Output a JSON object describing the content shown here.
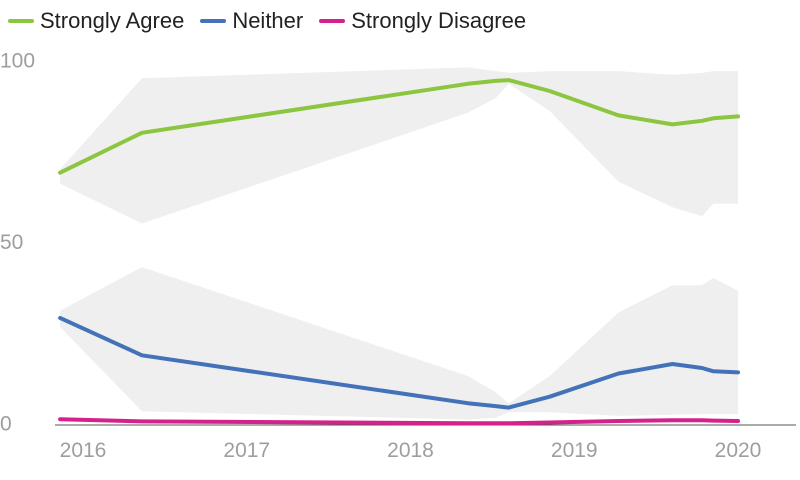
{
  "chart_data": {
    "type": "line",
    "title": "",
    "xlabel": "",
    "ylabel": "",
    "ylim": [
      0,
      100
    ],
    "y_ticks": [
      "0",
      "50",
      "100"
    ],
    "x_ticks": [
      {
        "label": "2016",
        "value": 2016
      },
      {
        "label": "2017",
        "value": 2017
      },
      {
        "label": "2018",
        "value": 2018
      },
      {
        "label": "2019",
        "value": 2019
      },
      {
        "label": "2020",
        "value": 2020
      }
    ],
    "xlim": [
      2015.8,
      2020.4
    ],
    "legend_position": "top-left",
    "grid": false,
    "series": [
      {
        "name": "Strongly Agree",
        "color": "#8cc540",
        "x": [
          2015.86,
          2016.36,
          2018.35,
          2018.52,
          2018.6,
          2018.85,
          2019.27,
          2019.6,
          2019.78,
          2019.85,
          2020.0
        ],
        "values": [
          69.5,
          80.5,
          94,
          94.8,
          95,
          92,
          85.3,
          82.8,
          83.8,
          84.5,
          85
        ],
        "band": {
          "x": [
            2015.86,
            2016.36,
            2018.35,
            2018.52,
            2018.6,
            2018.85,
            2019.27,
            2019.6,
            2019.78,
            2019.85,
            2020.0
          ],
          "upper": [
            70.5,
            95.5,
            98.5,
            97.5,
            97,
            97.5,
            97.5,
            96.5,
            97,
            97.5,
            97.5
          ],
          "lower": [
            66.5,
            55.5,
            86,
            90,
            94,
            86.5,
            67,
            60,
            57.5,
            61,
            61
          ]
        }
      },
      {
        "name": "Neither",
        "color": "#4472b8",
        "x": [
          2015.86,
          2016.36,
          2018.35,
          2018.52,
          2018.6,
          2018.85,
          2019.27,
          2019.6,
          2019.78,
          2019.85,
          2020.0
        ],
        "values": [
          29.5,
          19.2,
          6,
          5.2,
          4.8,
          7.8,
          14.2,
          16.8,
          15.7,
          14.8,
          14.5
        ],
        "band": {
          "x": [
            2015.86,
            2016.36,
            2018.35,
            2018.52,
            2018.6,
            2018.85,
            2019.27,
            2019.6,
            2019.78,
            2019.85,
            2020.0
          ],
          "upper": [
            31.5,
            43.5,
            13.5,
            9,
            6,
            13.5,
            31,
            38.5,
            38.5,
            40.5,
            37
          ],
          "lower": [
            27,
            3.8,
            1.5,
            2,
            3.5,
            3.5,
            2.5,
            2.8,
            3,
            3,
            3
          ]
        }
      },
      {
        "name": "Strongly Disagree",
        "color": "#d6208b",
        "x": [
          2015.86,
          2016.36,
          2018.35,
          2018.52,
          2018.6,
          2018.85,
          2019.27,
          2019.6,
          2019.78,
          2019.85,
          2020.0
        ],
        "values": [
          1.6,
          1.0,
          0.5,
          0.5,
          0.5,
          0.7,
          1.1,
          1.3,
          1.3,
          1.2,
          1.1
        ]
      }
    ]
  }
}
